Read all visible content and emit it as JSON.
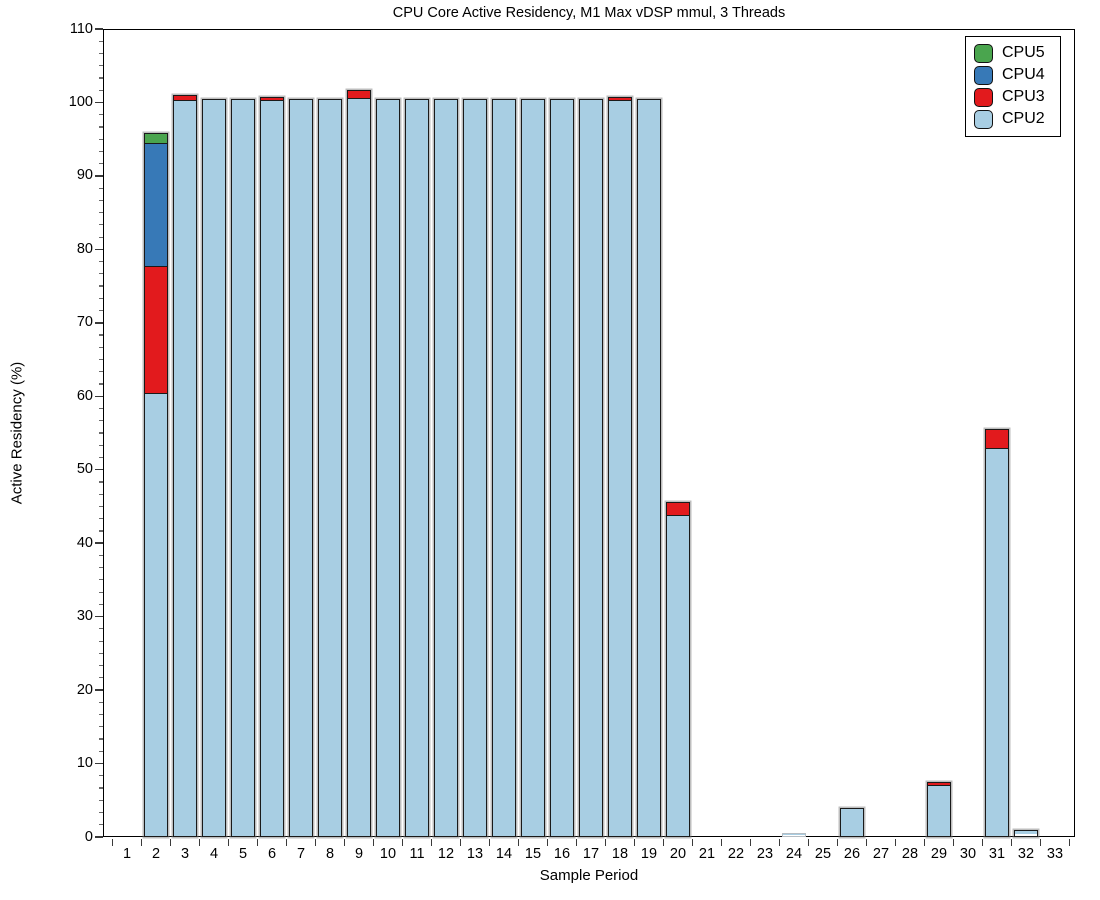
{
  "chart_data": {
    "type": "bar",
    "stacked": true,
    "title": "CPU Core Active Residency, M1 Max vDSP mmul, 3 Threads",
    "xlabel": "Sample Period",
    "ylabel": "Active Residency (%)",
    "ylim": [
      0,
      110
    ],
    "y_ticks": [
      0,
      10,
      20,
      30,
      40,
      50,
      60,
      70,
      80,
      90,
      100,
      110
    ],
    "grid": false,
    "legend_position": "top-right",
    "legend_order": [
      "CPU5",
      "CPU4",
      "CPU3",
      "CPU2"
    ],
    "categories": [
      "1",
      "2",
      "3",
      "4",
      "5",
      "6",
      "7",
      "8",
      "9",
      "10",
      "11",
      "12",
      "13",
      "14",
      "15",
      "16",
      "17",
      "18",
      "19",
      "20",
      "21",
      "22",
      "23",
      "24",
      "25",
      "26",
      "27",
      "28",
      "29",
      "30",
      "31",
      "32",
      "33"
    ],
    "series": [
      {
        "name": "CPU2",
        "color": "#a8cee3",
        "values": [
          0,
          60.3,
          100.1,
          100,
          100,
          100.1,
          100,
          100,
          100.3,
          100,
          100,
          100,
          100,
          100,
          100,
          100,
          100,
          100.1,
          100,
          43.5,
          0,
          0,
          0,
          0.08,
          0,
          3.5,
          0,
          0,
          6.8,
          0,
          52.7,
          0.6,
          0
        ]
      },
      {
        "name": "CPU3",
        "color": "#e21a1d",
        "values": [
          0,
          17.3,
          0.5,
          0,
          0,
          0.3,
          0,
          0,
          1.0,
          0,
          0,
          0,
          0,
          0,
          0,
          0,
          0,
          0.2,
          0,
          1.7,
          0,
          0,
          0,
          0,
          0,
          0,
          0,
          0,
          0.3,
          0,
          2.5,
          0,
          0
        ]
      },
      {
        "name": "CPU4",
        "color": "#3779b7",
        "values": [
          0,
          16.6,
          0,
          0,
          0,
          0,
          0,
          0,
          0,
          0,
          0,
          0,
          0,
          0,
          0,
          0,
          0,
          0,
          0,
          0,
          0,
          0,
          0,
          0,
          0,
          0,
          0,
          0,
          0,
          0,
          0,
          0,
          0
        ]
      },
      {
        "name": "CPU5",
        "color": "#4aa54e",
        "values": [
          0,
          1.2,
          0,
          0,
          0,
          0,
          0,
          0,
          0,
          0,
          0,
          0,
          0,
          0,
          0,
          0,
          0,
          0,
          0,
          0,
          0,
          0,
          0,
          0,
          0,
          0,
          0,
          0,
          0,
          0,
          0,
          0,
          0
        ]
      }
    ]
  }
}
